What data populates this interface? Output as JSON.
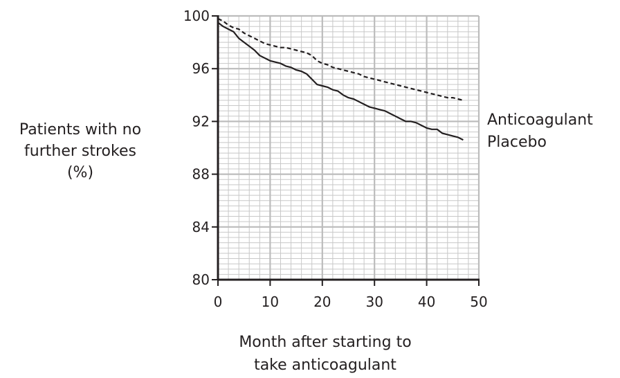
{
  "chart_data": {
    "type": "line",
    "title": "",
    "ylabel_lines": [
      "Patients with no",
      "further strokes",
      "(%)"
    ],
    "xlabel_lines": [
      "Month after starting to",
      "take anticoagulant"
    ],
    "xlim": [
      0,
      50
    ],
    "ylim": [
      80,
      100
    ],
    "x_ticks": [
      0,
      10,
      20,
      30,
      40,
      50
    ],
    "y_ticks": [
      80,
      84,
      88,
      92,
      96,
      100
    ],
    "x_tick_labels": [
      "0",
      "10",
      "20",
      "30",
      "40",
      "50"
    ],
    "y_tick_labels": [
      "80",
      "84",
      "88",
      "92",
      "96",
      "100"
    ],
    "grid": true,
    "series": [
      {
        "name": "Anticoagulant",
        "line_style": "dashed",
        "x": [
          0,
          1,
          2,
          3,
          4,
          5,
          6,
          7,
          8,
          9,
          10,
          11,
          12,
          13,
          14,
          15,
          16,
          17,
          18,
          19,
          20,
          21,
          22,
          23,
          24,
          25,
          26,
          27,
          28,
          29,
          30,
          31,
          32,
          33,
          34,
          35,
          36,
          37,
          38,
          39,
          40,
          41,
          42,
          43,
          44,
          45,
          46,
          47
        ],
        "y": [
          99.8,
          99.6,
          99.3,
          99.1,
          99.0,
          98.7,
          98.5,
          98.3,
          98.1,
          97.9,
          97.8,
          97.7,
          97.6,
          97.6,
          97.5,
          97.4,
          97.3,
          97.2,
          97.0,
          96.6,
          96.4,
          96.3,
          96.1,
          96.0,
          95.9,
          95.8,
          95.7,
          95.6,
          95.4,
          95.3,
          95.2,
          95.1,
          95.0,
          94.9,
          94.8,
          94.7,
          94.6,
          94.5,
          94.4,
          94.3,
          94.2,
          94.1,
          94.0,
          93.9,
          93.8,
          93.8,
          93.7,
          93.6
        ]
      },
      {
        "name": "Placebo",
        "line_style": "solid",
        "x": [
          0,
          1,
          2,
          3,
          4,
          5,
          6,
          7,
          8,
          9,
          10,
          11,
          12,
          13,
          14,
          15,
          16,
          17,
          18,
          19,
          20,
          21,
          22,
          23,
          24,
          25,
          26,
          27,
          28,
          29,
          30,
          31,
          32,
          33,
          34,
          35,
          36,
          37,
          38,
          39,
          40,
          41,
          42,
          43,
          44,
          45,
          46,
          47
        ],
        "y": [
          99.5,
          99.2,
          99.0,
          98.8,
          98.3,
          98.0,
          97.7,
          97.4,
          97.0,
          96.8,
          96.6,
          96.5,
          96.4,
          96.2,
          96.1,
          95.9,
          95.8,
          95.6,
          95.2,
          94.8,
          94.7,
          94.6,
          94.4,
          94.3,
          94.0,
          93.8,
          93.7,
          93.5,
          93.3,
          93.1,
          93.0,
          92.9,
          92.8,
          92.6,
          92.4,
          92.2,
          92.0,
          92.0,
          91.9,
          91.7,
          91.5,
          91.4,
          91.4,
          91.1,
          91.0,
          90.9,
          90.8,
          90.6
        ]
      }
    ]
  }
}
